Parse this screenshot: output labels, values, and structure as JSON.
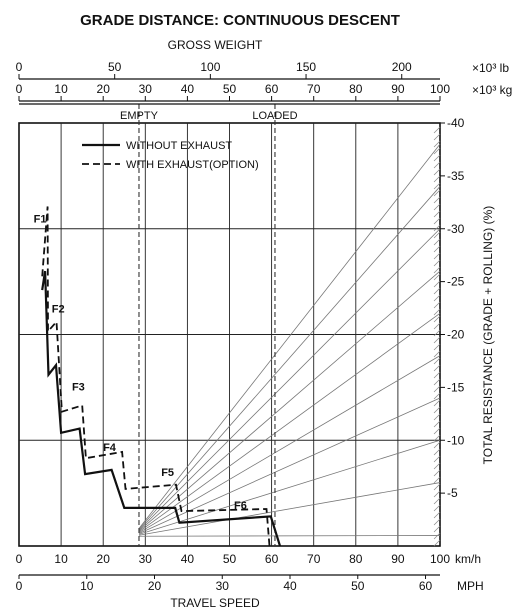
{
  "chart_data": {
    "type": "line",
    "title": "GRADE DISTANCE: CONTINUOUS DESCENT",
    "top_axis_lb": {
      "label": "GROSS WEIGHT",
      "unit": "×10³ lb",
      "range": [
        0,
        220
      ],
      "ticks": [
        "0",
        "50",
        "100",
        "150",
        "200"
      ]
    },
    "top_axis_kg": {
      "unit": "×10³ kg",
      "range": [
        0,
        100
      ],
      "ticks": [
        "0",
        "10",
        "20",
        "30",
        "40",
        "50",
        "60",
        "70",
        "80",
        "90",
        "100"
      ]
    },
    "weight_markers": [
      {
        "label": "EMPTY",
        "kg": 28.5
      },
      {
        "label": "LOADED",
        "kg": 60.8
      }
    ],
    "legend": [
      {
        "label": "WITHOUT EXHAUST",
        "style": "solid"
      },
      {
        "label": "WITH EXHAUST(OPTION)",
        "style": "dashed"
      }
    ],
    "y_axis": {
      "label": "TOTAL RESISTANCE (GRADE + ROLLING) (%)",
      "range": [
        0,
        40
      ],
      "ticks": [
        "5",
        "10",
        "15",
        "20",
        "25",
        "30",
        "35",
        "40"
      ]
    },
    "x_axis_kmh": {
      "unit": "km/h",
      "range": [
        0,
        100
      ],
      "ticks": [
        "0",
        "10",
        "20",
        "30",
        "40",
        "50",
        "60",
        "70",
        "80",
        "90",
        "100"
      ]
    },
    "x_axis_mph": {
      "label": "TRAVEL SPEED",
      "unit": "MPH",
      "ticks": [
        "0",
        "10",
        "20",
        "30",
        "40",
        "50",
        "60"
      ]
    },
    "gear_labels": [
      "F1",
      "F2",
      "F3",
      "F4",
      "F5",
      "F6"
    ],
    "gear_label_positions": [
      {
        "label": "F1",
        "kmh": 5,
        "pct": 30.6
      },
      {
        "label": "F2",
        "kmh": 9.3,
        "pct": 22.1
      },
      {
        "label": "F3",
        "kmh": 14.1,
        "pct": 14.7
      },
      {
        "label": "F4",
        "kmh": 21.5,
        "pct": 9.0
      },
      {
        "label": "F5",
        "kmh": 35.3,
        "pct": 6.6
      },
      {
        "label": "F6",
        "kmh": 52.6,
        "pct": 3.5
      }
    ],
    "grade_lines_weight_kg": [
      {
        "w": 100,
        "pct": [
          1,
          6,
          10,
          14,
          18,
          22,
          26,
          30,
          34,
          38
        ]
      }
    ],
    "series": [
      {
        "name": "WITHOUT EXHAUST",
        "style": "solid",
        "points": [
          [
            5.5,
            24.2
          ],
          [
            6.2,
            26.0
          ],
          [
            7.0,
            16.2
          ],
          [
            8.8,
            17.1
          ],
          [
            10.0,
            10.7
          ],
          [
            14.4,
            11.1
          ],
          [
            15.7,
            6.8
          ],
          [
            22.0,
            7.2
          ],
          [
            25.0,
            3.6
          ],
          [
            37.1,
            3.6
          ],
          [
            38.1,
            2.2
          ],
          [
            56.4,
            2.7
          ],
          [
            59.8,
            2.8
          ],
          [
            62.0,
            0
          ]
        ]
      },
      {
        "name": "WITH EXHAUST(OPTION)",
        "style": "dashed",
        "points": [
          [
            5.5,
            25.5
          ],
          [
            6.8,
            32.1
          ],
          [
            6.9,
            20.3
          ],
          [
            8.9,
            21.2
          ],
          [
            10.2,
            12.7
          ],
          [
            15.0,
            13.3
          ],
          [
            15.9,
            8.3
          ],
          [
            24.5,
            8.9
          ],
          [
            25.3,
            5.4
          ],
          [
            37.3,
            5.8
          ],
          [
            38.6,
            3.3
          ],
          [
            58.8,
            3.5
          ],
          [
            59.5,
            0
          ]
        ]
      }
    ]
  }
}
